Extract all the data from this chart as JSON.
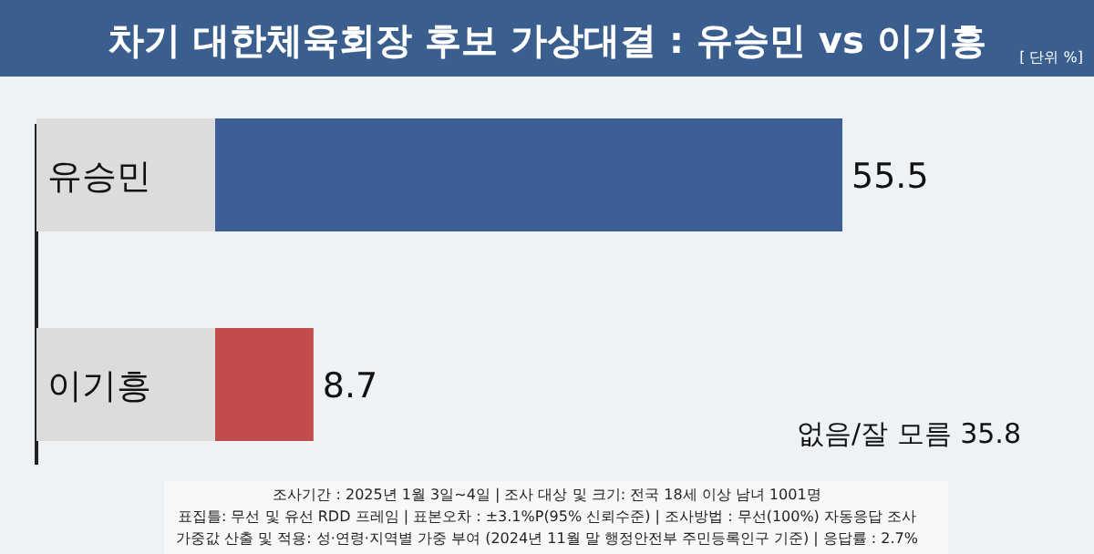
{
  "chart_data": {
    "type": "bar",
    "orientation": "horizontal",
    "title": "차기 대한체육회장 후보 가상대결 : 유승민 vs 이기흥",
    "subtitle": "[ 단위 %]",
    "categories": [
      "유승민",
      "이기흥"
    ],
    "values": [
      55.5,
      8.7
    ],
    "colors": [
      "#3b5f96",
      "#c24b4b"
    ],
    "data_labels": true,
    "annotations": [
      "없음/잘 모름 35.8",
      "조사기간 : 2025년 1월 3일~4일 | 조사 대상 및 크기: 전국 18세 이상 남녀 1001명",
      "표집틀: 무선 및 유선 RDD 프레임 | 표본오차 : ±3.1%P(95% 신뢰수준) | 조사방법 : 무선(100%) 자동응답 조사",
      "가중값 산출 및 적용: 성·연령·지역별 가중 부여 (2024년 11월 말 행정안전부 주민등록인구 기준) | 응답률 : 2.7%"
    ]
  }
}
